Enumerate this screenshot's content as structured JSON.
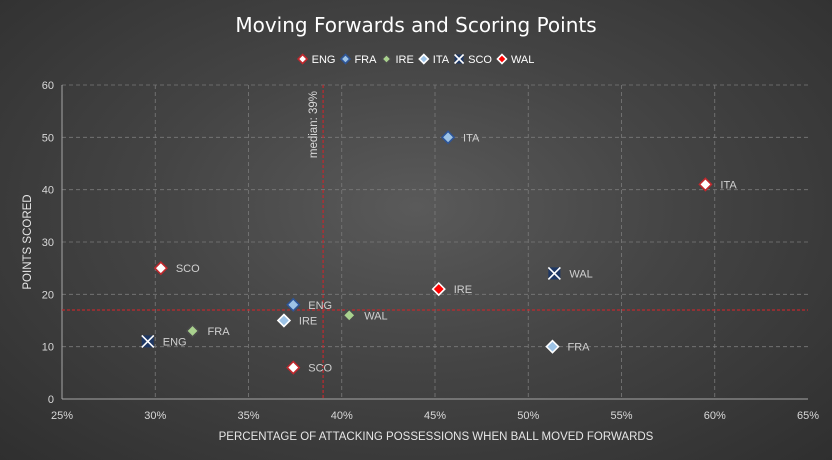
{
  "chart_data": {
    "type": "scatter",
    "title": "Moving Forwards and Scoring Points",
    "xlabel": "PERCENTAGE OF ATTACKING  POSSESSIONS  WHEN BALL MOVED FORWARDS",
    "ylabel": "POINTS SCORED",
    "xlim": [
      0.25,
      0.65
    ],
    "ylim": [
      0,
      60
    ],
    "x_ticks": [
      "25%",
      "30%",
      "35%",
      "40%",
      "45%",
      "50%",
      "55%",
      "60%",
      "65%"
    ],
    "y_ticks": [
      "0",
      "10",
      "20",
      "30",
      "40",
      "50",
      "60"
    ],
    "grid": "dashed",
    "legend_position": "top",
    "reference_lines": {
      "vertical": {
        "value": 0.39,
        "label": "median: 39%",
        "color": "#c0282d"
      },
      "horizontal": {
        "value": 17,
        "color": "#c0282d"
      }
    },
    "series": [
      {
        "name": "ENG",
        "marker": "diamond",
        "fill": "#ffffff",
        "stroke": "#c0282d",
        "points": [
          {
            "x": 0.595,
            "y": 41,
            "label": "ITA"
          },
          {
            "x": 0.303,
            "y": 25,
            "label": "SCO"
          },
          {
            "x": 0.374,
            "y": 6,
            "label": "SCO"
          }
        ]
      },
      {
        "name": "FRA",
        "marker": "diamond",
        "fill": "#9dc3e6",
        "stroke": "#2e5597",
        "points": [
          {
            "x": 0.457,
            "y": 50,
            "label": "ITA"
          },
          {
            "x": 0.374,
            "y": 18,
            "label": "ENG"
          }
        ]
      },
      {
        "name": "IRE",
        "marker": "diamond",
        "fill": "#a9d18e",
        "stroke": "#4a4a4a",
        "points": [
          {
            "x": 0.32,
            "y": 13,
            "label": "FRA"
          },
          {
            "x": 0.404,
            "y": 16,
            "label": "WAL"
          }
        ]
      },
      {
        "name": "ITA",
        "marker": "diamond",
        "fill": "#9dc3e6",
        "stroke": "#ffffff",
        "points": [
          {
            "x": 0.513,
            "y": 10,
            "label": "FRA"
          },
          {
            "x": 0.369,
            "y": 15,
            "label": "IRE"
          }
        ]
      },
      {
        "name": "SCO",
        "marker": "x",
        "fill": "#1f3864",
        "stroke": "#ffffff",
        "points": [
          {
            "x": 0.296,
            "y": 11,
            "label": "ENG"
          },
          {
            "x": 0.514,
            "y": 24,
            "label": "WAL"
          }
        ]
      },
      {
        "name": "WAL",
        "marker": "diamond",
        "fill": "#ff0000",
        "stroke": "#ffffff",
        "points": [
          {
            "x": 0.452,
            "y": 21,
            "label": "IRE"
          }
        ]
      }
    ]
  }
}
